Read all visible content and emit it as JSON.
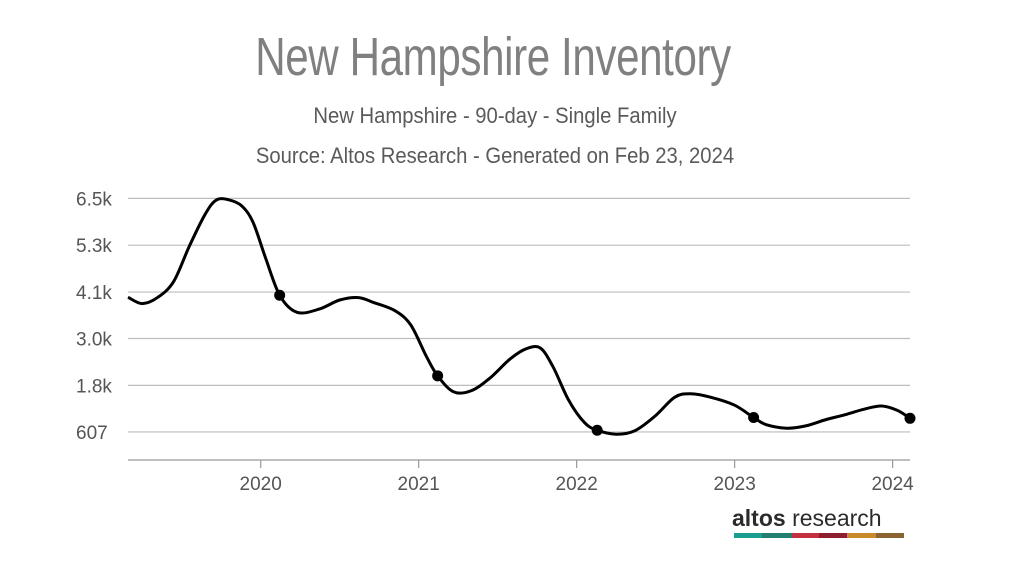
{
  "header": {
    "title": "New Hampshire Inventory",
    "subtitle": "New Hampshire - 90-day - Single Family",
    "source": "Source: Altos Research - Generated on Feb 23, 2024"
  },
  "brand": {
    "word1": "altos",
    "word2": "research",
    "stripe_colors": [
      "#1a9e8f",
      "#237f6f",
      "#c4303f",
      "#8c1f2e",
      "#c98a2c",
      "#8a6330"
    ]
  },
  "colors": {
    "line": "#000000",
    "grid": "#bdbdbd",
    "axis_text": "#555555"
  },
  "chart_data": {
    "type": "line",
    "title": "New Hampshire Inventory",
    "xlabel": "",
    "ylabel": "",
    "y_tick_labels": [
      "607",
      "1.8k",
      "3.0k",
      "4.1k",
      "5.3k",
      "6.5k"
    ],
    "y_tick_values": [
      607,
      1780,
      2960,
      4130,
      5310,
      6490
    ],
    "x_tick_labels": [
      "2020",
      "2021",
      "2022",
      "2023",
      "2024"
    ],
    "x_tick_values": [
      2020.0,
      2021.0,
      2022.0,
      2023.0,
      2024.0
    ],
    "xlim": [
      2019.16,
      2024.11
    ],
    "ylim": [
      -100,
      6700
    ],
    "grid": "horizontal",
    "series": [
      {
        "values": [
          [
            2019.16,
            4000
          ],
          [
            2019.25,
            3840
          ],
          [
            2019.35,
            4000
          ],
          [
            2019.45,
            4400
          ],
          [
            2019.55,
            5300
          ],
          [
            2019.65,
            6100
          ],
          [
            2019.72,
            6450
          ],
          [
            2019.8,
            6450
          ],
          [
            2019.88,
            6300
          ],
          [
            2019.95,
            5900
          ],
          [
            2020.03,
            5000
          ],
          [
            2020.12,
            4050
          ],
          [
            2020.23,
            3620
          ],
          [
            2020.37,
            3700
          ],
          [
            2020.5,
            3930
          ],
          [
            2020.62,
            3990
          ],
          [
            2020.72,
            3860
          ],
          [
            2020.85,
            3660
          ],
          [
            2020.95,
            3300
          ],
          [
            2021.05,
            2500
          ],
          [
            2021.12,
            2020
          ],
          [
            2021.22,
            1620
          ],
          [
            2021.33,
            1640
          ],
          [
            2021.45,
            1960
          ],
          [
            2021.58,
            2450
          ],
          [
            2021.68,
            2700
          ],
          [
            2021.77,
            2720
          ],
          [
            2021.85,
            2250
          ],
          [
            2021.95,
            1400
          ],
          [
            2022.05,
            840
          ],
          [
            2022.13,
            650
          ],
          [
            2022.25,
            550
          ],
          [
            2022.37,
            640
          ],
          [
            2022.5,
            1020
          ],
          [
            2022.62,
            1480
          ],
          [
            2022.72,
            1570
          ],
          [
            2022.85,
            1480
          ],
          [
            2023.0,
            1280
          ],
          [
            2023.12,
            970
          ],
          [
            2023.2,
            790
          ],
          [
            2023.33,
            700
          ],
          [
            2023.45,
            760
          ],
          [
            2023.58,
            920
          ],
          [
            2023.7,
            1040
          ],
          [
            2023.82,
            1180
          ],
          [
            2023.93,
            1260
          ],
          [
            2024.03,
            1150
          ],
          [
            2024.11,
            950
          ]
        ],
        "markers": [
          [
            2020.12,
            4050
          ],
          [
            2021.12,
            2020
          ],
          [
            2022.13,
            650
          ],
          [
            2023.12,
            970
          ],
          [
            2024.11,
            950
          ]
        ]
      }
    ]
  }
}
